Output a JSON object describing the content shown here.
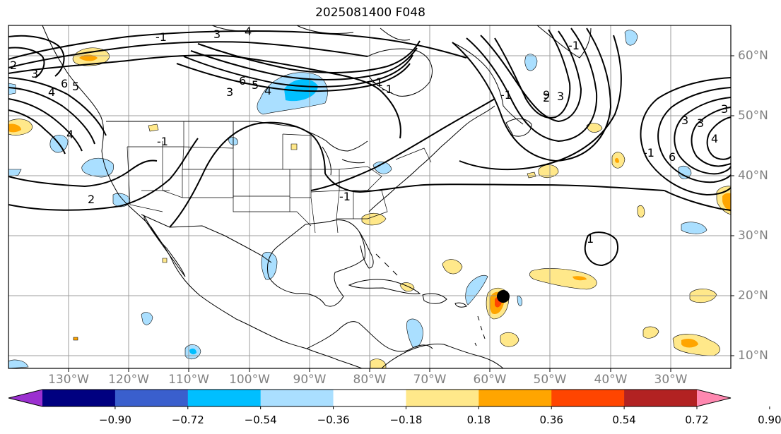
{
  "title": "2025081400 F048",
  "longitude_labels": [
    "130°W",
    "120°W",
    "110°W",
    "100°W",
    "90°W",
    "80°W",
    "70°W",
    "60°W",
    "50°W",
    "40°W",
    "30°W"
  ],
  "latitude_labels": [
    "60°N",
    "50°N",
    "40°N",
    "30°N",
    "20°N",
    "10°N"
  ],
  "contour_labels": [
    "-1",
    "3",
    "4",
    "2",
    "6",
    "5",
    "4",
    "3",
    "-1",
    "2",
    "4",
    "6",
    "5",
    "4",
    "3",
    "-1",
    "-1",
    "2",
    "-1",
    "9",
    "3",
    "1",
    "-1",
    "-1",
    "3",
    "3",
    "4",
    "6",
    "-1",
    "3"
  ],
  "colorbar": {
    "tick_labels": [
      "−0.90",
      "−0.72",
      "−0.54",
      "−0.36",
      "−0.18",
      "0.18",
      "0.36",
      "0.54",
      "0.72",
      "0.90"
    ],
    "colors": [
      "#9b30d0",
      "#000080",
      "#3a5fcd",
      "#00bfff",
      "#aadfff",
      "#ffffff",
      "#ffe88a",
      "#ffa500",
      "#ff4500",
      "#b22222",
      "#ff88b0"
    ]
  },
  "storm_marker": "black-dot"
}
